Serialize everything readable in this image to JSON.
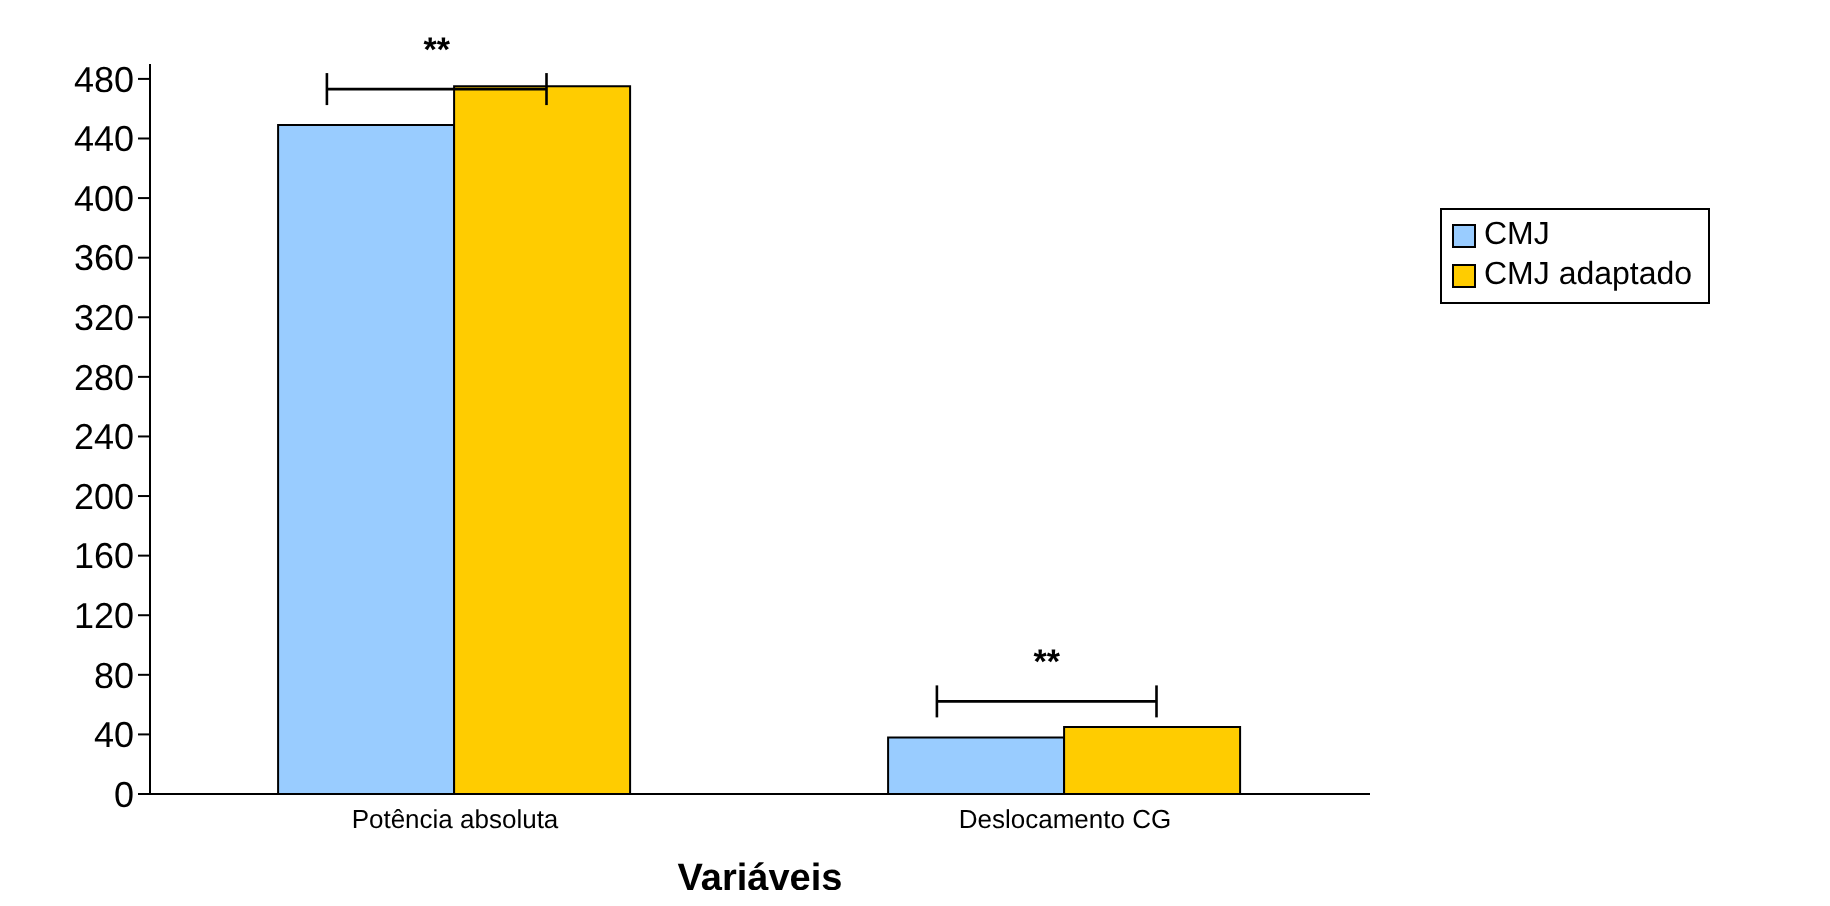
{
  "chart_data": {
    "type": "bar",
    "xlabel": "Variáveis",
    "categories": [
      "Potência absoluta",
      "Deslocamento CG"
    ],
    "series": [
      {
        "name": "CMJ",
        "color": "#99ccff",
        "values": [
          449,
          38
        ]
      },
      {
        "name": "CMJ adaptado",
        "color": "#ffcc00",
        "values": [
          475,
          45
        ]
      }
    ],
    "ylim": [
      0,
      490
    ],
    "yticks": [
      0,
      40,
      80,
      120,
      160,
      200,
      240,
      280,
      320,
      360,
      400,
      440,
      480
    ],
    "grid": false,
    "legend": "right",
    "annotations": [
      "**",
      "**"
    ]
  }
}
